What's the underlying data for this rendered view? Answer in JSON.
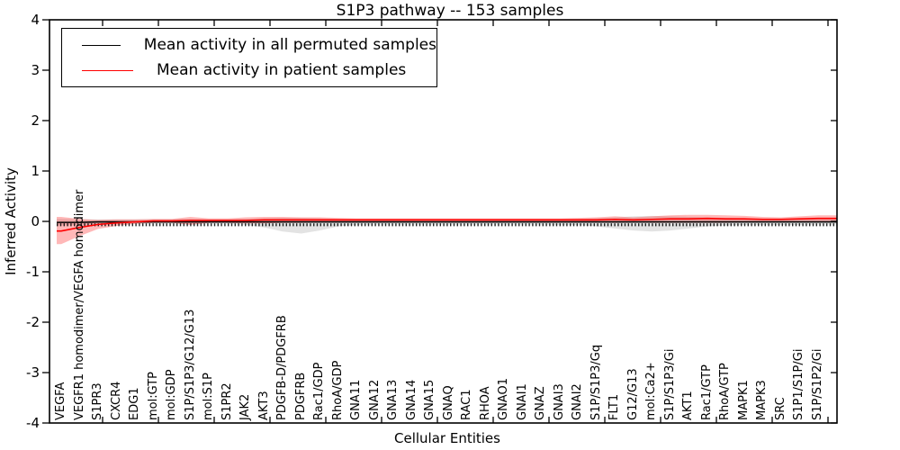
{
  "title": "S1P3 pathway -- 153 samples",
  "axes": {
    "x_label": "Cellular Entities",
    "y_label": "Inferred Activity",
    "y_tick_labels": [
      "4",
      "3",
      "2",
      "1",
      "0",
      "-1",
      "-2",
      "-3",
      "-4"
    ],
    "y_tick_values": [
      4,
      3,
      2,
      1,
      0,
      -1,
      -2,
      -3,
      -4
    ]
  },
  "legend": {
    "entries": [
      {
        "label": "Mean activity in all permuted samples",
        "color": "#000000"
      },
      {
        "label": "Mean activity in patient samples",
        "color": "#ff0000"
      }
    ]
  },
  "colors": {
    "frame": "#000000",
    "permuted_line": "#000000",
    "patient_line": "#ff0000",
    "patient_band": "rgba(255,0,0,0.28)",
    "permuted_band": "rgba(0,0,0,0.11)"
  },
  "chart_data": {
    "type": "line",
    "title": "S1P3 pathway -- 153 samples",
    "xlabel": "Cellular Entities",
    "ylabel": "Inferred Activity",
    "ylim": [
      -4,
      4
    ],
    "grid": false,
    "legend_position": "upper left",
    "categories": [
      "VEGFA",
      "VEGFR1 homodimer/VEGFA homodimer",
      "S1PR3",
      "CXCR4",
      "EDG1",
      "mol:GTP",
      "mol:GDP",
      "S1P/S1P3/G12/G13",
      "mol:S1P",
      "S1PR2",
      "JAK2",
      "AKT3",
      "PDGFB-D/PDGFRB",
      "PDGFRB",
      "Rac1/GDP",
      "RhoA/GDP",
      "GNA11",
      "GNA12",
      "GNA13",
      "GNA14",
      "GNA15",
      "GNAQ",
      "RAC1",
      "RHOA",
      "GNAO1",
      "GNAI1",
      "GNAZ",
      "GNAI3",
      "GNAI2",
      "S1P/S1P3/Gq",
      "FLT1",
      "G12/G13",
      "mol:Ca2+",
      "S1P/S1P3/Gi",
      "AKT1",
      "Rac1/GTP",
      "RhoA/GTP",
      "MAPK1",
      "MAPK3",
      "SRC",
      "S1P1/S1P/Gi",
      "S1P/S1P2/Gi"
    ],
    "series": [
      {
        "name": "Mean activity in all permuted samples",
        "color": "#000000",
        "values": [
          -0.02,
          -0.02,
          -0.01,
          -0.01,
          -0.01,
          -0.01,
          -0.01,
          -0.01,
          -0.01,
          -0.01,
          -0.01,
          -0.01,
          -0.01,
          -0.01,
          -0.01,
          -0.01,
          -0.01,
          -0.01,
          -0.01,
          -0.01,
          -0.01,
          -0.01,
          -0.01,
          -0.01,
          -0.01,
          -0.01,
          -0.01,
          -0.01,
          -0.01,
          -0.01,
          -0.01,
          -0.01,
          -0.01,
          -0.01,
          -0.01,
          -0.01,
          -0.01,
          -0.01,
          -0.01,
          -0.01,
          -0.01,
          -0.01
        ],
        "band_upper": [
          0.05,
          0.04,
          0.04,
          0.04,
          0.04,
          0.04,
          0.04,
          0.05,
          0.04,
          0.04,
          0.05,
          0.06,
          0.07,
          0.07,
          0.06,
          0.05,
          0.05,
          0.05,
          0.05,
          0.05,
          0.05,
          0.05,
          0.05,
          0.05,
          0.05,
          0.05,
          0.05,
          0.05,
          0.05,
          0.06,
          0.08,
          0.1,
          0.11,
          0.1,
          0.09,
          0.08,
          0.07,
          0.06,
          0.06,
          0.06,
          0.06,
          0.06
        ],
        "band_lower": [
          -0.08,
          -0.07,
          -0.06,
          -0.05,
          -0.05,
          -0.05,
          -0.05,
          -0.06,
          -0.05,
          -0.05,
          -0.07,
          -0.12,
          -0.2,
          -0.24,
          -0.18,
          -0.1,
          -0.07,
          -0.06,
          -0.06,
          -0.06,
          -0.06,
          -0.06,
          -0.06,
          -0.06,
          -0.06,
          -0.06,
          -0.06,
          -0.07,
          -0.07,
          -0.1,
          -0.14,
          -0.18,
          -0.2,
          -0.18,
          -0.14,
          -0.1,
          -0.08,
          -0.07,
          -0.07,
          -0.07,
          -0.07,
          -0.06
        ]
      },
      {
        "name": "Mean activity in patient samples",
        "color": "#ff0000",
        "values": [
          -0.19,
          -0.12,
          -0.06,
          -0.03,
          -0.01,
          0.01,
          0.01,
          0.02,
          0.02,
          0.02,
          0.02,
          0.03,
          0.03,
          0.03,
          0.03,
          0.03,
          0.03,
          0.03,
          0.03,
          0.03,
          0.03,
          0.03,
          0.03,
          0.03,
          0.03,
          0.03,
          0.03,
          0.03,
          0.03,
          0.03,
          0.04,
          0.03,
          0.04,
          0.05,
          0.05,
          0.06,
          0.05,
          0.05,
          0.04,
          0.04,
          0.05,
          0.06
        ],
        "band_upper": [
          0.09,
          0.05,
          0.03,
          0.04,
          0.04,
          0.05,
          0.05,
          0.09,
          0.06,
          0.06,
          0.08,
          0.09,
          0.09,
          0.08,
          0.08,
          0.07,
          0.06,
          0.06,
          0.06,
          0.06,
          0.06,
          0.06,
          0.06,
          0.06,
          0.06,
          0.06,
          0.06,
          0.06,
          0.07,
          0.08,
          0.1,
          0.08,
          0.1,
          0.12,
          0.13,
          0.13,
          0.12,
          0.11,
          0.09,
          0.08,
          0.1,
          0.12
        ],
        "band_lower": [
          -0.45,
          -0.29,
          -0.15,
          -0.09,
          -0.05,
          -0.03,
          -0.03,
          -0.07,
          -0.03,
          -0.03,
          -0.04,
          -0.04,
          -0.03,
          -0.03,
          -0.02,
          -0.02,
          -0.02,
          -0.02,
          -0.02,
          -0.02,
          -0.02,
          -0.02,
          -0.02,
          -0.02,
          -0.02,
          -0.02,
          -0.02,
          -0.02,
          -0.02,
          -0.02,
          -0.03,
          -0.02,
          -0.03,
          -0.03,
          -0.03,
          -0.03,
          -0.03,
          -0.02,
          -0.02,
          -0.02,
          -0.01,
          0.0
        ]
      }
    ]
  }
}
